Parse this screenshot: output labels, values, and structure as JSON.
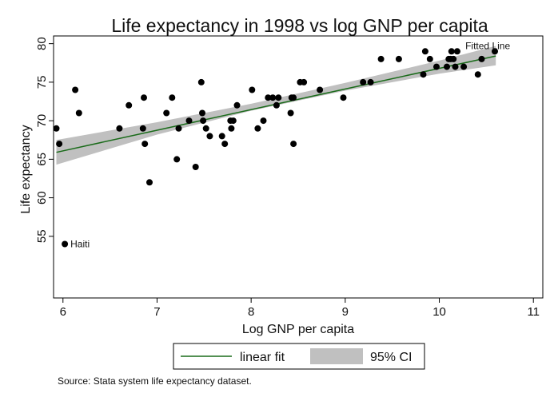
{
  "chart_data": {
    "type": "scatter",
    "title": "Life expectancy in 1998 vs log GNP per capita",
    "xlabel": "Log GNP per capita",
    "ylabel": "Life expectancy",
    "xlim": [
      5.9,
      11.1
    ],
    "ylim": [
      47,
      81
    ],
    "xticks": [
      6,
      7,
      8,
      9,
      10,
      11
    ],
    "yticks": [
      55,
      60,
      65,
      70,
      75,
      80
    ],
    "grid": false,
    "legend_position": "bottom",
    "annotations": [
      {
        "text": "Haiti",
        "x": 6.02,
        "y": 54
      },
      {
        "text": "Fitted Line",
        "x": 10.6,
        "y": 79
      }
    ],
    "fit": {
      "name": "linear fit",
      "x": [
        5.93,
        10.6
      ],
      "y": [
        65.9,
        78.4
      ]
    },
    "ci": {
      "name": "95% CI",
      "x": [
        5.93,
        7.0,
        8.0,
        9.0,
        10.0,
        10.6
      ],
      "lower": [
        64.3,
        68.2,
        71.3,
        73.9,
        76.1,
        77.2
      ],
      "upper": [
        67.5,
        69.8,
        72.2,
        74.9,
        77.8,
        79.7
      ]
    },
    "colors": {
      "points": "#000000",
      "fit_line": "#1a6b1a",
      "ci_band": "#c0c0c0"
    },
    "series": [
      {
        "name": "",
        "points": [
          [
            5.93,
            69
          ],
          [
            5.96,
            67
          ],
          [
            6.02,
            54
          ],
          [
            6.13,
            74
          ],
          [
            6.17,
            71
          ],
          [
            6.6,
            69
          ],
          [
            6.7,
            72
          ],
          [
            6.85,
            69
          ],
          [
            6.86,
            73
          ],
          [
            6.87,
            67
          ],
          [
            6.92,
            62
          ],
          [
            7.1,
            71
          ],
          [
            7.16,
            73
          ],
          [
            7.21,
            65
          ],
          [
            7.23,
            69
          ],
          [
            7.34,
            70
          ],
          [
            7.41,
            64
          ],
          [
            7.47,
            75
          ],
          [
            7.48,
            71
          ],
          [
            7.49,
            70
          ],
          [
            7.52,
            69
          ],
          [
            7.56,
            68
          ],
          [
            7.69,
            68
          ],
          [
            7.72,
            67
          ],
          [
            7.78,
            70
          ],
          [
            7.79,
            69
          ],
          [
            7.81,
            70
          ],
          [
            7.85,
            72
          ],
          [
            8.01,
            74
          ],
          [
            8.07,
            69
          ],
          [
            8.13,
            70
          ],
          [
            8.18,
            73
          ],
          [
            8.23,
            73
          ],
          [
            8.27,
            72
          ],
          [
            8.29,
            73
          ],
          [
            8.42,
            71
          ],
          [
            8.43,
            73
          ],
          [
            8.45,
            73
          ],
          [
            8.45,
            67
          ],
          [
            8.52,
            75
          ],
          [
            8.56,
            75
          ],
          [
            8.73,
            74
          ],
          [
            8.98,
            73
          ],
          [
            9.19,
            75
          ],
          [
            9.27,
            75
          ],
          [
            9.38,
            78
          ],
          [
            9.57,
            78
          ],
          [
            9.83,
            76
          ],
          [
            9.85,
            79
          ],
          [
            9.9,
            78
          ],
          [
            9.97,
            77
          ],
          [
            10.08,
            77
          ],
          [
            10.1,
            78
          ],
          [
            10.12,
            78
          ],
          [
            10.13,
            79
          ],
          [
            10.15,
            78
          ],
          [
            10.17,
            77
          ],
          [
            10.19,
            79
          ],
          [
            10.26,
            77
          ],
          [
            10.41,
            76
          ],
          [
            10.45,
            78
          ],
          [
            10.59,
            79
          ]
        ]
      }
    ]
  },
  "legend": {
    "fit_label": "linear fit",
    "ci_label": "95% CI"
  },
  "source": "Source: Stata system life expectancy dataset."
}
